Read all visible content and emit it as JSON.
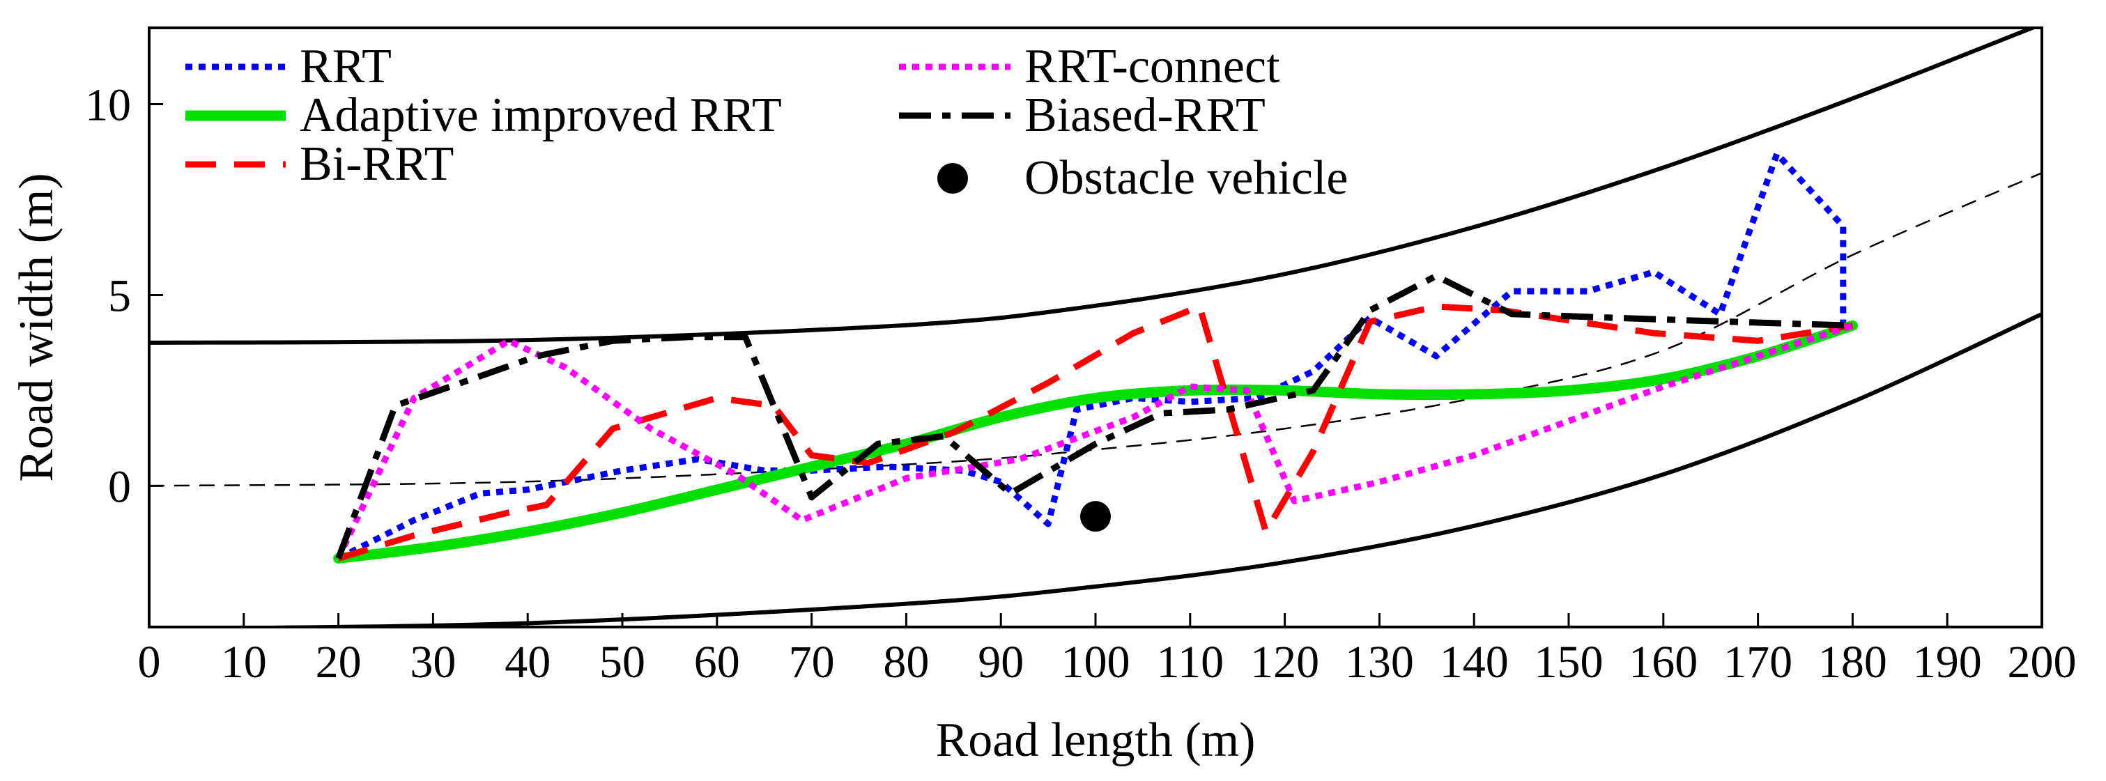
{
  "chart_data": {
    "type": "line",
    "title": "",
    "xlabel": "Road length (m)",
    "ylabel": "Road width (m)",
    "xlim": [
      0,
      200
    ],
    "ylim": [
      -3.7,
      12
    ],
    "x_ticks": [
      0,
      10,
      20,
      30,
      40,
      50,
      60,
      70,
      80,
      90,
      100,
      110,
      120,
      130,
      140,
      150,
      160,
      170,
      180,
      190,
      200
    ],
    "y_ticks": [
      0,
      5,
      10
    ],
    "grid": false,
    "legend_position": "top",
    "series": [
      {
        "name": "RRT",
        "color": "#0000ff",
        "style": "dotted",
        "x": [
          20,
          28,
          35,
          40,
          50,
          58,
          65,
          70,
          78,
          86,
          90,
          95,
          98,
          104,
          110,
          117,
          123,
          129,
          136,
          144,
          152,
          159,
          166,
          172,
          179,
          179
        ],
        "y": [
          -1.9,
          -0.9,
          -0.2,
          -0.1,
          0.4,
          0.7,
          0.4,
          0.4,
          0.5,
          0.4,
          0.1,
          -1.0,
          2.0,
          2.3,
          2.2,
          2.3,
          3.0,
          4.4,
          3.4,
          5.1,
          5.1,
          5.6,
          4.5,
          8.7,
          6.8,
          4.2
        ]
      },
      {
        "name": "Adaptive improved RRT",
        "color": "#00e000",
        "style": "solid",
        "x": [
          20,
          30,
          40,
          50,
          60,
          70,
          80,
          90,
          100,
          110,
          120,
          130,
          140,
          150,
          160,
          170,
          180
        ],
        "y": [
          -1.9,
          -1.6,
          -1.2,
          -0.7,
          -0.1,
          0.5,
          1.1,
          1.8,
          2.3,
          2.5,
          2.5,
          2.4,
          2.4,
          2.5,
          2.8,
          3.4,
          4.2
        ]
      },
      {
        "name": "Bi-RRT",
        "color": "#ff0000",
        "style": "dashed",
        "x": [
          20,
          28,
          38,
          42,
          49,
          60,
          66,
          70,
          76,
          85,
          95,
          104,
          111,
          118,
          123,
          129,
          136,
          143,
          151,
          159,
          170,
          180
        ],
        "y": [
          -1.9,
          -1.3,
          -0.7,
          -0.5,
          1.5,
          2.3,
          2.1,
          0.8,
          0.6,
          1.4,
          2.7,
          4.0,
          4.7,
          -1.2,
          0.9,
          4.3,
          4.7,
          4.6,
          4.3,
          4.0,
          3.8,
          4.2
        ]
      },
      {
        "name": "RRT-connect",
        "color": "#ff00ff",
        "style": "dotted",
        "x": [
          20,
          28,
          38,
          44,
          53,
          62,
          69,
          80,
          92,
          104,
          110,
          116,
          121,
          130,
          140,
          150,
          160,
          170,
          180
        ],
        "y": [
          -1.9,
          2.3,
          3.8,
          3.1,
          1.5,
          0.3,
          -0.9,
          0.2,
          0.7,
          1.8,
          2.6,
          2.5,
          -0.4,
          0.1,
          0.8,
          1.7,
          2.6,
          3.4,
          4.2
        ]
      },
      {
        "name": "Biased-RRT",
        "color": "#000000",
        "style": "dashdot",
        "x": [
          20,
          26,
          33,
          41,
          49,
          57,
          63,
          70,
          77,
          84,
          91,
          100,
          107,
          114,
          123,
          129,
          136,
          144,
          155,
          167,
          180
        ],
        "y": [
          -1.9,
          2.1,
          2.7,
          3.4,
          3.8,
          3.9,
          3.9,
          -0.3,
          1.1,
          1.3,
          -0.2,
          1.1,
          1.9,
          2.0,
          2.5,
          4.6,
          5.5,
          4.5,
          4.4,
          4.3,
          4.2
        ]
      }
    ],
    "road_boundaries": {
      "upper_edge": {
        "color": "#000000",
        "x": [
          0,
          40,
          80,
          100,
          120,
          140,
          160,
          180,
          200
        ],
        "y": [
          3.75,
          3.82,
          4.21,
          4.72,
          5.55,
          6.78,
          8.34,
          10.15,
          12.1
        ]
      },
      "lower_edge": {
        "color": "#000000",
        "x": [
          0,
          40,
          80,
          100,
          120,
          140,
          160,
          180,
          200
        ],
        "y": [
          -3.75,
          -3.6,
          -3.09,
          -2.64,
          -2.0,
          -1.05,
          0.3,
          2.2,
          4.5
        ]
      },
      "center_line": {
        "color": "#000000",
        "x": [
          0,
          40,
          80,
          100,
          120,
          140,
          160,
          180,
          200
        ],
        "y": [
          0,
          0.11,
          0.56,
          0.95,
          1.5,
          2.3,
          3.55,
          6.05,
          8.2
        ]
      }
    },
    "obstacles": [
      {
        "name": "Obstacle vehicle",
        "x": 100,
        "y": -0.8,
        "color": "#000000"
      }
    ],
    "legend": [
      {
        "label": "RRT",
        "color": "#0000ff",
        "style": "dotted",
        "marker": "line"
      },
      {
        "label": "Adaptive improved RRT",
        "color": "#00e000",
        "style": "solid",
        "marker": "line"
      },
      {
        "label": "Bi-RRT",
        "color": "#ff0000",
        "style": "dashed",
        "marker": "line"
      },
      {
        "label": "RRT-connect",
        "color": "#ff00ff",
        "style": "dotted",
        "marker": "line"
      },
      {
        "label": "Biased-RRT",
        "color": "#000000",
        "style": "dashdot",
        "marker": "line"
      },
      {
        "label": "Obstacle vehicle",
        "color": "#000000",
        "style": "none",
        "marker": "dot"
      }
    ]
  }
}
